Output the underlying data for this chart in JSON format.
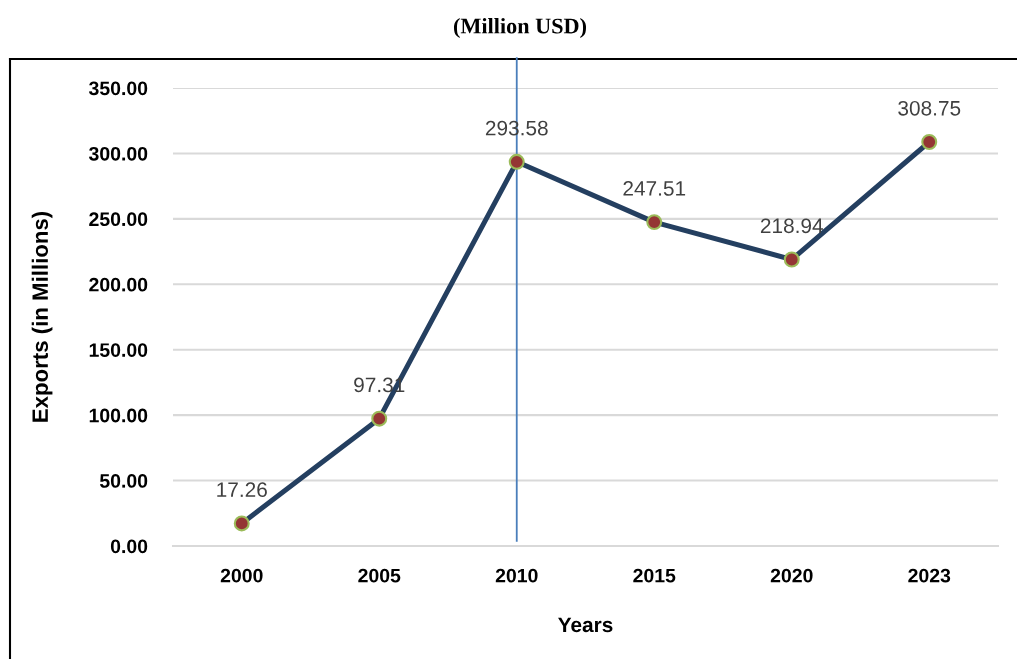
{
  "chart_data": {
    "type": "line",
    "title": "(Million USD)",
    "xlabel": "Years",
    "ylabel": "Exports (in Millions)",
    "categories": [
      "2000",
      "2005",
      "2010",
      "2015",
      "2020",
      "2023"
    ],
    "series": [
      {
        "color": "#243f60",
        "values": [
          17.26,
          97.31,
          293.58,
          247.51,
          218.94,
          308.75
        ]
      }
    ],
    "ylim": [
      0,
      350
    ],
    "yticks": [
      {
        "value": 0,
        "label": "0.00"
      },
      {
        "value": 50,
        "label": "50.00"
      },
      {
        "value": 100,
        "label": "100.00"
      },
      {
        "value": 150,
        "label": "150.00"
      },
      {
        "value": 200,
        "label": "200.00"
      },
      {
        "value": 250,
        "label": "250.00"
      },
      {
        "value": 300,
        "label": "300.00"
      },
      {
        "value": 350,
        "label": "350.00"
      }
    ],
    "ref_lines": [
      {
        "axis": "x",
        "value": "2010",
        "color": "#4a7ebb"
      }
    ],
    "grid": "y",
    "marker": "circle",
    "line_style": "solid",
    "data_labels": true
  }
}
